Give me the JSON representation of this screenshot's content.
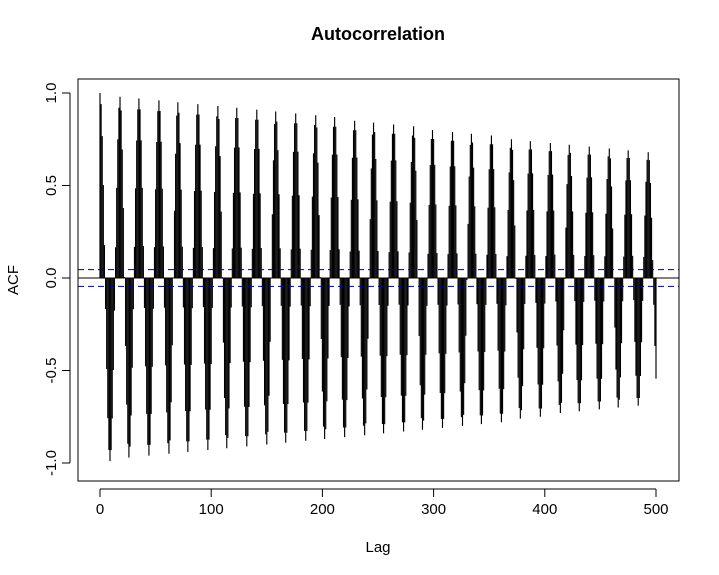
{
  "chart_data": {
    "type": "bar",
    "title": "Autocorrelation",
    "xlabel": "Lag",
    "ylabel": "ACF",
    "xlim": [
      0,
      500
    ],
    "ylim": [
      -1,
      1
    ],
    "xticks": [
      0,
      100,
      200,
      300,
      400,
      500
    ],
    "xtick_labels": [
      "0",
      "100",
      "200",
      "300",
      "400",
      "500"
    ],
    "yticks": [
      -1.0,
      -0.5,
      0.0,
      0.5,
      1.0
    ],
    "ytick_labels": [
      "-1.0",
      "-0.5",
      "0.0",
      "0.5",
      "1.0"
    ],
    "period": 17.6,
    "peak_lags": [
      0,
      18,
      35,
      53,
      70,
      88,
      106,
      123,
      141,
      158,
      176,
      194,
      211,
      229,
      246,
      264,
      282,
      299,
      317,
      334,
      352,
      370,
      387,
      405,
      422,
      440,
      458,
      475,
      493
    ],
    "peak_values": [
      1.0,
      0.98,
      0.97,
      0.96,
      0.95,
      0.94,
      0.93,
      0.92,
      0.91,
      0.9,
      0.89,
      0.88,
      0.87,
      0.85,
      0.84,
      0.83,
      0.82,
      0.8,
      0.79,
      0.78,
      0.77,
      0.75,
      0.74,
      0.73,
      0.72,
      0.71,
      0.7,
      0.69,
      0.68
    ],
    "trough_lags": [
      9,
      26,
      44,
      62,
      79,
      97,
      114,
      132,
      150,
      167,
      185,
      202,
      220,
      238,
      255,
      273,
      290,
      308,
      326,
      343,
      361,
      378,
      396,
      414,
      431,
      449,
      466,
      484
    ],
    "trough_values": [
      -0.99,
      -0.97,
      -0.96,
      -0.95,
      -0.94,
      -0.93,
      -0.92,
      -0.91,
      -0.9,
      -0.89,
      -0.88,
      -0.87,
      -0.86,
      -0.85,
      -0.84,
      -0.83,
      -0.82,
      -0.81,
      -0.8,
      -0.79,
      -0.78,
      -0.76,
      -0.75,
      -0.73,
      -0.72,
      -0.71,
      -0.7,
      -0.69
    ],
    "confidence_band": [
      -0.045,
      0.045
    ],
    "colors": {
      "bars": "#000000",
      "confidence": "#00008B",
      "zero_line": "#000000"
    }
  }
}
